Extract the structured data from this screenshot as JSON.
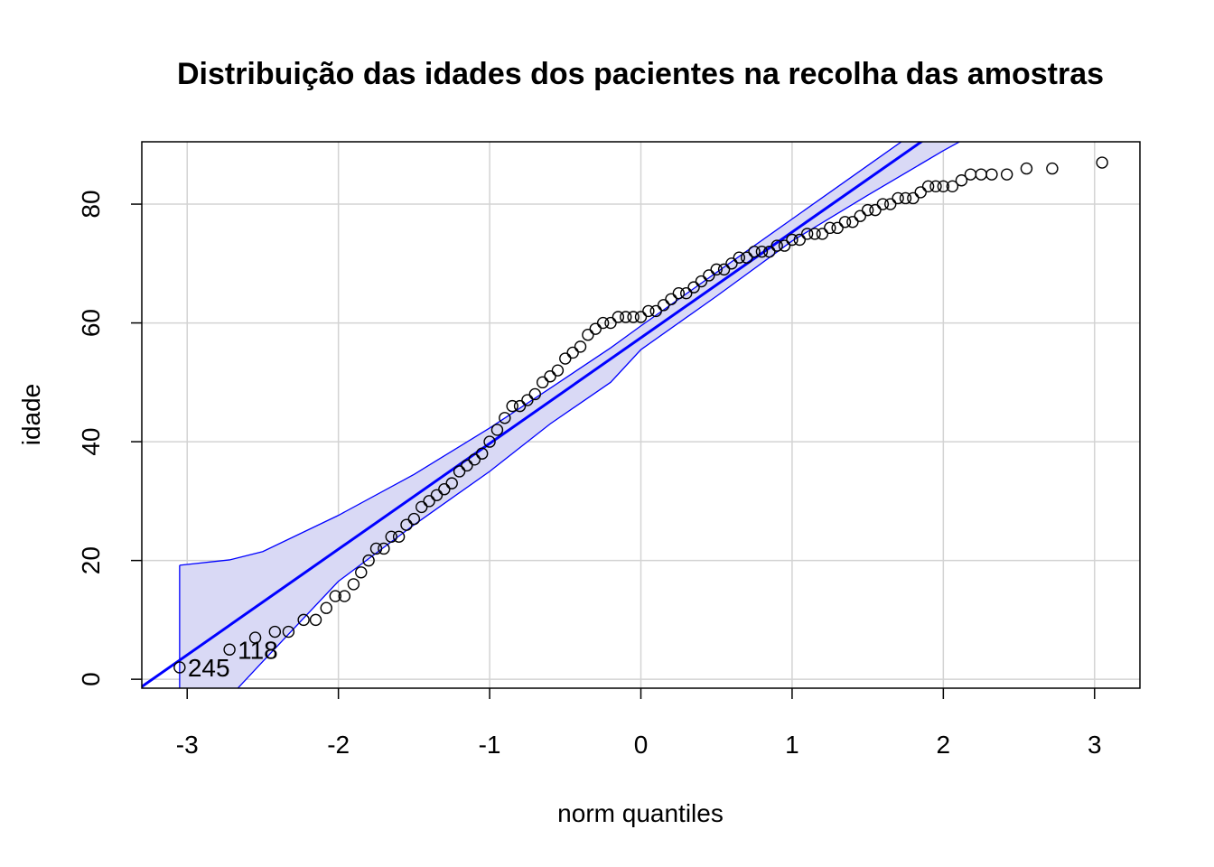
{
  "chart_data": {
    "type": "scatter",
    "title": "Distribuição das idades dos pacientes na recolha das amostras",
    "xlabel": "norm quantiles",
    "ylabel": "idade",
    "xlim": [
      -3.3,
      3.3
    ],
    "ylim": [
      -1.5,
      90.5
    ],
    "xticks": [
      -3,
      -2,
      -1,
      0,
      1,
      2,
      3
    ],
    "yticks": [
      0,
      20,
      40,
      60,
      80
    ],
    "grid": true,
    "colors": {
      "points": "#000000",
      "reference_line": "#0000ff",
      "envelope_fill": "#d9d9f5",
      "envelope_edge": "#0000ff",
      "grid": "#d3d3d3"
    },
    "reference_line": {
      "intercept": 57.5,
      "slope": 17.8
    },
    "envelope": {
      "x": [
        -3.05,
        -2.72,
        -2.5,
        -2.0,
        -1.5,
        -1.0,
        -0.6,
        -0.2,
        0.0,
        0.5,
        1.0,
        1.5,
        2.0,
        2.5
      ],
      "upper": [
        19.2,
        20.1,
        21.5,
        27.6,
        34.5,
        42.3,
        49.0,
        55.8,
        59.5,
        68.5,
        77.5,
        86.5,
        95.5,
        104.5
      ],
      "lower": [
        -3.0,
        -3.0,
        3.0,
        16.5,
        26.0,
        35.0,
        43.0,
        50.0,
        55.5,
        64.5,
        73.8,
        81.5,
        89.0,
        96.0
      ]
    },
    "points": {
      "x": [
        -3.05,
        -2.72,
        -2.55,
        -2.42,
        -2.33,
        -2.23,
        -2.15,
        -2.08,
        -2.02,
        -1.96,
        -1.9,
        -1.85,
        -1.8,
        -1.75,
        -1.7,
        -1.65,
        -1.6,
        -1.55,
        -1.5,
        -1.45,
        -1.4,
        -1.35,
        -1.3,
        -1.25,
        -1.2,
        -1.15,
        -1.1,
        -1.05,
        -1.0,
        -0.95,
        -0.9,
        -0.85,
        -0.8,
        -0.75,
        -0.7,
        -0.65,
        -0.6,
        -0.55,
        -0.5,
        -0.45,
        -0.4,
        -0.35,
        -0.3,
        -0.25,
        -0.2,
        -0.15,
        -0.1,
        -0.05,
        0.0,
        0.05,
        0.1,
        0.15,
        0.2,
        0.25,
        0.3,
        0.35,
        0.4,
        0.45,
        0.5,
        0.55,
        0.6,
        0.65,
        0.7,
        0.75,
        0.8,
        0.85,
        0.9,
        0.95,
        1.0,
        1.05,
        1.1,
        1.15,
        1.2,
        1.25,
        1.3,
        1.35,
        1.4,
        1.45,
        1.5,
        1.55,
        1.6,
        1.65,
        1.7,
        1.75,
        1.8,
        1.85,
        1.9,
        1.95,
        2.0,
        2.06,
        2.12,
        2.18,
        2.25,
        2.32,
        2.42,
        2.55,
        2.72,
        3.05
      ],
      "y": [
        2,
        5,
        7,
        8,
        8,
        10,
        10,
        12,
        14,
        14,
        16,
        18,
        20,
        22,
        22,
        24,
        24,
        26,
        27,
        29,
        30,
        31,
        32,
        33,
        35,
        36,
        37,
        38,
        40,
        42,
        44,
        46,
        46,
        47,
        48,
        50,
        51,
        52,
        54,
        55,
        56,
        58,
        59,
        60,
        60,
        61,
        61,
        61,
        61,
        62,
        62,
        63,
        64,
        65,
        65,
        66,
        67,
        68,
        69,
        69,
        70,
        71,
        71,
        72,
        72,
        72,
        73,
        73,
        74,
        74,
        75,
        75,
        75,
        76,
        76,
        77,
        77,
        78,
        79,
        79,
        80,
        80,
        81,
        81,
        81,
        82,
        83,
        83,
        83,
        83,
        84,
        85,
        85,
        85,
        85,
        86,
        86,
        87
      ]
    },
    "point_labels": [
      {
        "text": "245",
        "x": -3.05,
        "y": 2
      },
      {
        "text": "118",
        "x": -2.72,
        "y": 5
      }
    ]
  }
}
